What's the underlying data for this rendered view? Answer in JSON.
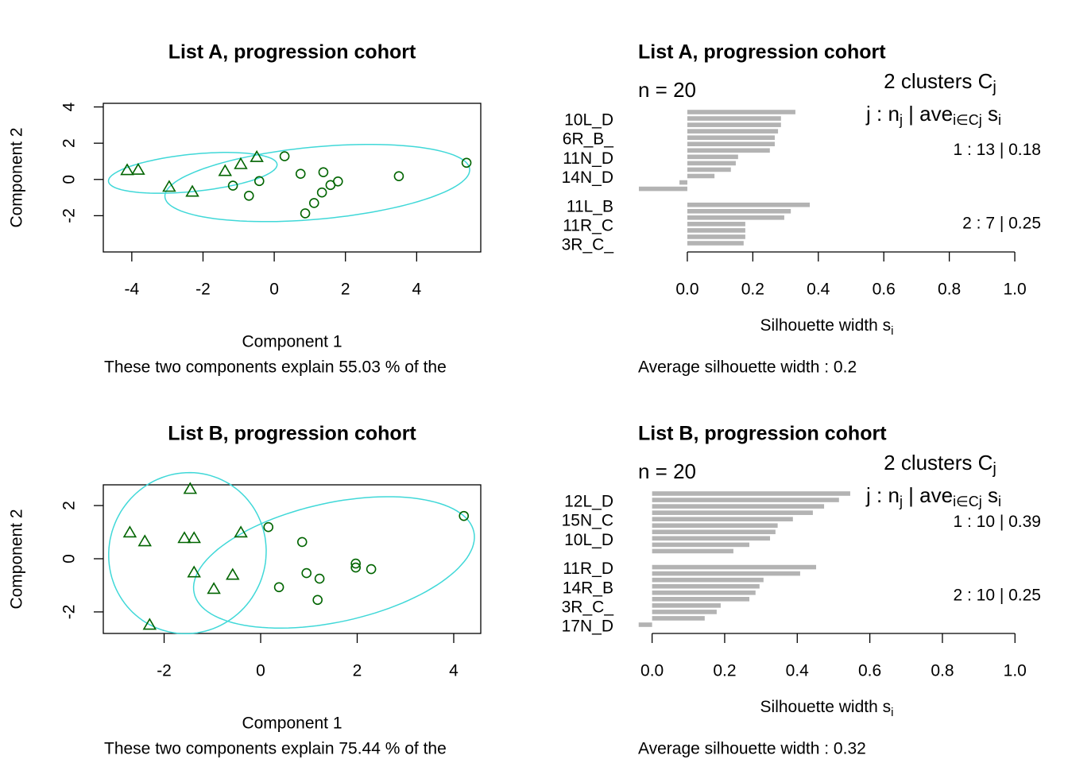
{
  "chart_data": [
    {
      "type": "clusplot",
      "title": "List A, progression cohort",
      "xlabel": "Component 1",
      "ylabel": "Component 2",
      "subtitle": "These two components explain 55.03 % of the",
      "xlim": [
        -4.8,
        5.8
      ],
      "ylim": [
        -4.0,
        4.2
      ],
      "xticks": [
        -4,
        -2,
        0,
        2,
        4
      ],
      "yticks": [
        -2,
        0,
        2,
        4
      ],
      "ellipse_color": "#40d8d8",
      "series": [
        {
          "marker": "circle",
          "color": "#006400",
          "x": [
            0.29,
            0.74,
            1.38,
            -0.42,
            -1.16,
            -0.71,
            1.58,
            1.79,
            1.34,
            1.12,
            0.87,
            3.5,
            5.4
          ],
          "values": [
            1.28,
            0.31,
            0.4,
            -0.09,
            -0.34,
            -0.9,
            -0.31,
            -0.11,
            -0.72,
            -1.3,
            -1.87,
            0.18,
            0.92
          ]
        },
        {
          "marker": "triangle",
          "color": "#006400",
          "x": [
            -4.13,
            -3.82,
            -2.95,
            -2.3,
            -1.38,
            -0.94,
            -0.49
          ],
          "values": [
            0.52,
            0.54,
            -0.4,
            -0.67,
            0.47,
            0.85,
            1.24
          ]
        }
      ]
    },
    {
      "type": "silhouette",
      "title": "List A, progression cohort",
      "n_label": "n = 20",
      "header": [
        [
          "2  clusters  C",
          "j"
        ],
        [
          "j :  n",
          "j",
          " | ave",
          "i∈Cj",
          "  s",
          "i"
        ]
      ],
      "cluster_labels": [
        "1 :   13  |  0.18",
        "2 :   7  |  0.25"
      ],
      "categories": [
        null,
        "10L_D",
        null,
        null,
        "6R_B_",
        null,
        null,
        "11N_D",
        null,
        null,
        "14N_D",
        null,
        null,
        "11L_B",
        null,
        null,
        "11R_C",
        null,
        null,
        "3R_C_"
      ],
      "groups": [
        1,
        1,
        1,
        1,
        1,
        1,
        1,
        1,
        1,
        1,
        1,
        1,
        1,
        2,
        2,
        2,
        2,
        2,
        2,
        2
      ],
      "values": [
        0.33,
        0.286,
        0.286,
        0.277,
        0.267,
        0.267,
        0.252,
        0.155,
        0.148,
        0.133,
        0.083,
        -0.024,
        -0.148,
        0.374,
        0.316,
        0.296,
        0.177,
        0.177,
        0.177,
        0.172
      ],
      "color": "#b3b3b3",
      "xlim": [
        -0.194,
        1.046
      ],
      "xticks": [
        {
          "value": 0,
          "label": "0.0"
        },
        {
          "value": 0.2,
          "label": "0.2"
        },
        {
          "value": 0.4,
          "label": "0.4"
        },
        {
          "value": 0.6,
          "label": "0.6"
        },
        {
          "value": 0.8,
          "label": "0.8"
        },
        {
          "value": 1,
          "label": "1.0"
        }
      ],
      "xlabel": [
        "Silhouette width s",
        "i"
      ],
      "footer": "Average silhouette width :  0.2"
    },
    {
      "type": "clusplot",
      "title": "List B, progression cohort",
      "xlabel": "Component 1",
      "ylabel": "Component 2",
      "subtitle": "These two components explain 75.44 % of the",
      "xlim": [
        -3.26,
        4.56
      ],
      "ylim": [
        -2.81,
        2.78
      ],
      "xticks": [
        -2,
        0,
        2,
        4
      ],
      "yticks": [
        -2,
        0,
        2
      ],
      "ellipse_color": "#40d8d8",
      "series": [
        {
          "marker": "circle",
          "color": "#006400",
          "x": [
            0.16,
            0.86,
            4.21,
            1.97,
            1.97,
            2.29,
            0.95,
            1.22,
            0.38,
            1.18
          ],
          "values": [
            1.19,
            0.63,
            1.61,
            -0.18,
            -0.33,
            -0.39,
            -0.54,
            -0.75,
            -1.07,
            -1.55
          ]
        },
        {
          "marker": "triangle",
          "color": "#006400",
          "x": [
            -1.46,
            -2.71,
            -2.4,
            -1.58,
            -1.38,
            -0.41,
            -1.38,
            -0.58,
            -0.97,
            -2.3
          ],
          "values": [
            2.63,
            0.99,
            0.66,
            0.78,
            0.78,
            0.99,
            -0.51,
            -0.6,
            -1.13,
            -2.48
          ]
        }
      ]
    },
    {
      "type": "silhouette",
      "title": "List B, progression cohort",
      "n_label": "n = 20",
      "header": [
        [
          "2  clusters  C",
          "j"
        ],
        [
          "j :  n",
          "j",
          " | ave",
          "i∈Cj",
          "  s",
          "i"
        ]
      ],
      "cluster_labels": [
        "1 :   10  |  0.39",
        "2 :   10  |  0.25"
      ],
      "categories": [
        null,
        "12L_D",
        null,
        null,
        "15N_C",
        null,
        null,
        "10L_D",
        null,
        null,
        "11R_D",
        null,
        null,
        "14R_B",
        null,
        null,
        "3R_C_",
        null,
        null,
        "17N_D"
      ],
      "groups": [
        1,
        1,
        1,
        1,
        1,
        1,
        1,
        1,
        1,
        1,
        2,
        2,
        2,
        2,
        2,
        2,
        2,
        2,
        2,
        2
      ],
      "values": [
        0.546,
        0.515,
        0.474,
        0.443,
        0.388,
        0.346,
        0.34,
        0.325,
        0.268,
        0.224,
        0.452,
        0.408,
        0.307,
        0.296,
        0.285,
        0.268,
        0.189,
        0.178,
        0.145,
        -0.037
      ],
      "color": "#b3b3b3",
      "xlim": [
        -0.078,
        1.041
      ],
      "xticks": [
        {
          "value": 0,
          "label": "0.0"
        },
        {
          "value": 0.2,
          "label": "0.2"
        },
        {
          "value": 0.4,
          "label": "0.4"
        },
        {
          "value": 0.6,
          "label": "0.6"
        },
        {
          "value": 0.8,
          "label": "0.8"
        },
        {
          "value": 1,
          "label": "1.0"
        }
      ],
      "xlabel": [
        "Silhouette width s",
        "i"
      ],
      "footer": "Average silhouette width :  0.32"
    }
  ]
}
